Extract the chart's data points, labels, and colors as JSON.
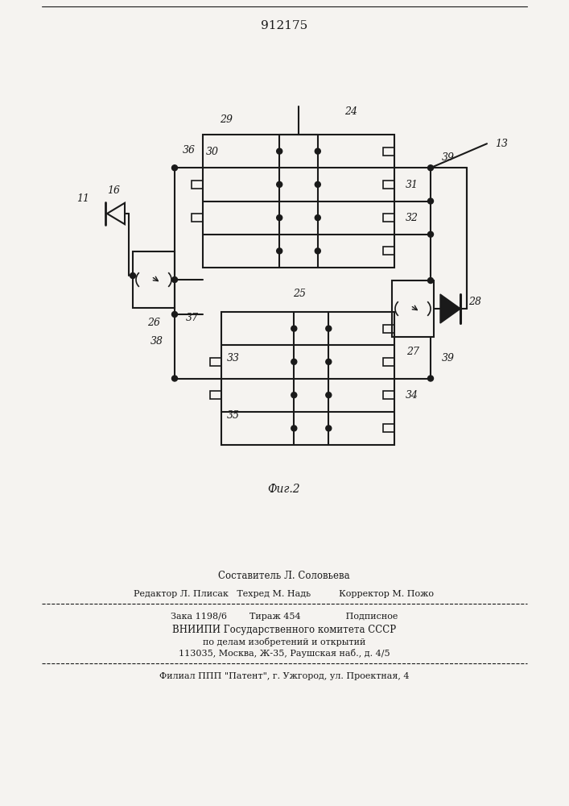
{
  "title": "912175",
  "fig_label": "Фиг.2",
  "bg_color": "#f5f3f0",
  "line_color": "#1a1a1a",
  "footer_lines": [
    "Составитель Л. Соловьева",
    "Редактор Л. Плисак   Техред М. Надь          Корректор М. Пожо",
    "Зака 1198/6        Тираж 454                Подписное",
    "ВНИИПИ Государственного комитета СССР",
    "по делам изобретений и открытий",
    "113035, Москва, Ж-35, Раушская наб., д. 4/5",
    "Филиал ППП \"Патент\", г. Ужгород, ул. Проектная, 4"
  ]
}
